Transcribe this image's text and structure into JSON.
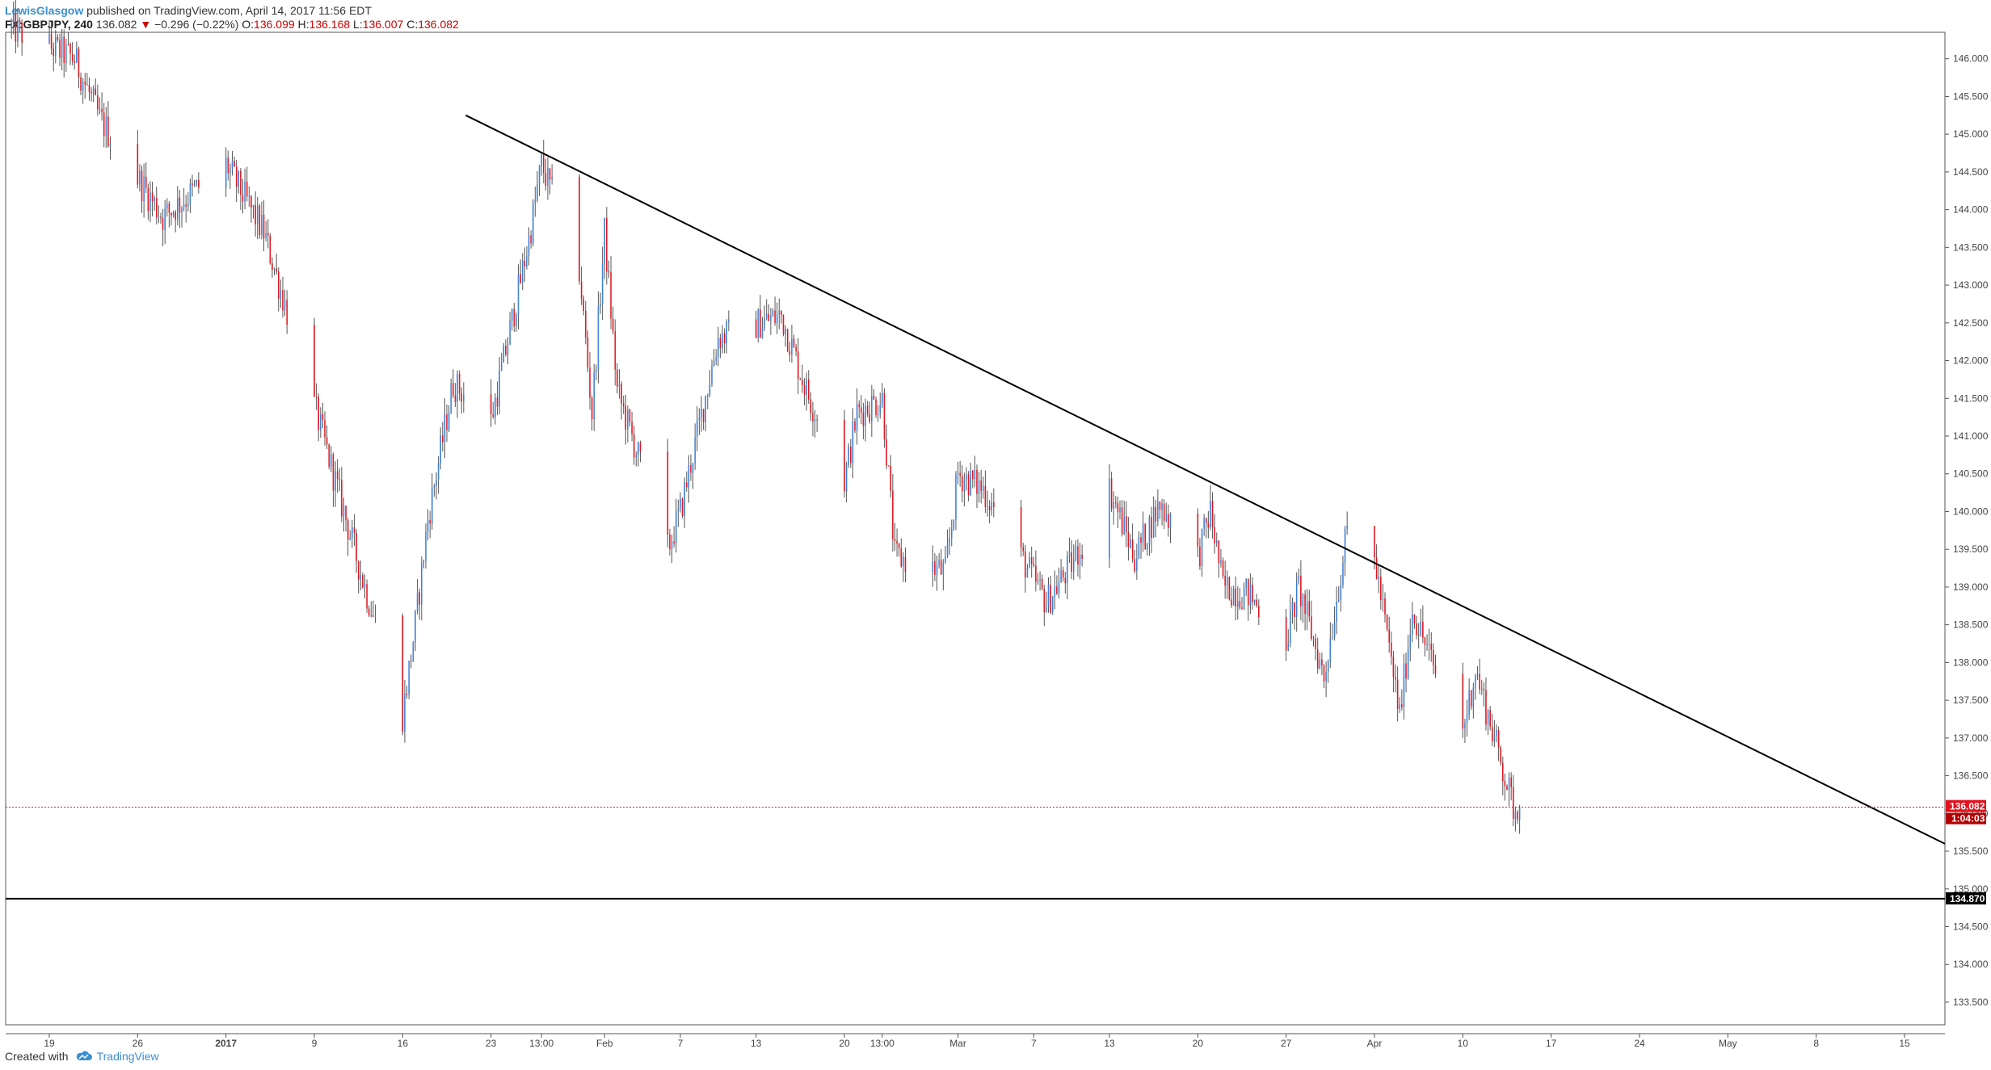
{
  "header": {
    "user": "LewisGlasgow",
    "published": "published on TradingView.com, April 14, 2017 11:56 EDT",
    "symbol": "FX:GBPJPY, 240",
    "last": "136.082",
    "change_arrow": "▼",
    "change": "−0.296 (−0.22%)",
    "o_label": "O:",
    "o": "136.099",
    "h_label": "H:",
    "h": "136.168",
    "l_label": "L:",
    "l": "136.007",
    "c_label": "C:",
    "c": "136.082"
  },
  "footer": {
    "created_with": "Created with",
    "brand": "TradingView",
    "logo_icon": "tradingview-cloud-icon"
  },
  "colors": {
    "up": "#3d7fd6",
    "down": "#e0141e",
    "trendline": "#000000",
    "support": "#000000",
    "price_line": "#e0141e",
    "grid": "#e8e8e8"
  },
  "chart_data": {
    "type": "candlestick",
    "timeframe": "240",
    "ylim": [
      133.2,
      146.35
    ],
    "y_ticks": [
      "133.500",
      "134.000",
      "134.500",
      "135.000",
      "135.500",
      "136.000",
      "136.500",
      "137.000",
      "137.500",
      "138.000",
      "138.500",
      "139.000",
      "139.500",
      "140.000",
      "140.500",
      "141.000",
      "141.500",
      "142.000",
      "142.500",
      "143.000",
      "143.500",
      "144.000",
      "144.500",
      "145.000",
      "145.500",
      "146.000"
    ],
    "x_ticks": [
      "19",
      "26",
      "2017",
      "9",
      "16",
      "23",
      "13:00",
      "Feb",
      "7",
      "13",
      "20",
      "13:00",
      "Mar",
      "7",
      "13",
      "20",
      "27",
      "Apr",
      "10",
      "17",
      "24",
      "May",
      "8",
      "15"
    ],
    "anchors": [
      {
        "t": "2016-12-16",
        "p": 146.4
      },
      {
        "t": "2016-12-21",
        "p": 146.0
      },
      {
        "t": "2016-12-23",
        "p": 145.2
      },
      {
        "t": "2016-12-28",
        "p": 143.9
      },
      {
        "t": "2017-01-02",
        "p": 144.6
      },
      {
        "t": "2017-01-05",
        "p": 143.7
      },
      {
        "t": "2017-01-09",
        "p": 141.4
      },
      {
        "t": "2017-01-13",
        "p": 139.0
      },
      {
        "t": "2017-01-16",
        "p": 137.3
      },
      {
        "t": "2017-01-17",
        "p": 138.5
      },
      {
        "t": "2017-01-18",
        "p": 139.9
      },
      {
        "t": "2017-01-20",
        "p": 141.7
      },
      {
        "t": "2017-01-23",
        "p": 141.2
      },
      {
        "t": "2017-01-26",
        "p": 143.6
      },
      {
        "t": "2017-01-27",
        "p": 144.6
      },
      {
        "t": "2017-01-30",
        "p": 143.2
      },
      {
        "t": "2017-01-31",
        "p": 141.3
      },
      {
        "t": "2017-02-01",
        "p": 143.7
      },
      {
        "t": "2017-02-02",
        "p": 141.6
      },
      {
        "t": "2017-02-06",
        "p": 139.5
      },
      {
        "t": "2017-02-07",
        "p": 140.0
      },
      {
        "t": "2017-02-10",
        "p": 142.3
      },
      {
        "t": "2017-02-15",
        "p": 142.6
      },
      {
        "t": "2017-02-17",
        "p": 141.6
      },
      {
        "t": "2017-02-20",
        "p": 140.4
      },
      {
        "t": "2017-02-21",
        "p": 141.3
      },
      {
        "t": "2017-02-23",
        "p": 141.5
      },
      {
        "t": "2017-02-24",
        "p": 139.4
      },
      {
        "t": "2017-02-28",
        "p": 139.2
      },
      {
        "t": "2017-03-01",
        "p": 140.5
      },
      {
        "t": "2017-03-03",
        "p": 140.3
      },
      {
        "t": "2017-03-06",
        "p": 139.4
      },
      {
        "t": "2017-03-08",
        "p": 138.8
      },
      {
        "t": "2017-03-10",
        "p": 139.3
      },
      {
        "t": "2017-03-13",
        "p": 140.3
      },
      {
        "t": "2017-03-15",
        "p": 139.4
      },
      {
        "t": "2017-03-17",
        "p": 140.1
      },
      {
        "t": "2017-03-20",
        "p": 139.4
      },
      {
        "t": "2017-03-21",
        "p": 140.0
      },
      {
        "t": "2017-03-22",
        "p": 139.0
      },
      {
        "t": "2017-03-24",
        "p": 138.9
      },
      {
        "t": "2017-03-27",
        "p": 138.3
      },
      {
        "t": "2017-03-28",
        "p": 139.0
      },
      {
        "t": "2017-03-30",
        "p": 137.8
      },
      {
        "t": "2017-04-01",
        "p": 139.9
      },
      {
        "t": "2017-04-03",
        "p": 139.4
      },
      {
        "t": "2017-04-05",
        "p": 137.3
      },
      {
        "t": "2017-04-06",
        "p": 138.7
      },
      {
        "t": "2017-04-08",
        "p": 137.8
      },
      {
        "t": "2017-04-10",
        "p": 137.1
      },
      {
        "t": "2017-04-11",
        "p": 137.9
      },
      {
        "t": "2017-04-13",
        "p": 136.7
      },
      {
        "t": "2017-04-14",
        "p": 136.08
      }
    ],
    "trendline": {
      "from": {
        "t": "2017-01-21",
        "p": 145.25
      },
      "to": {
        "t": "2017-05-20",
        "p": 135.45
      }
    },
    "support_level": 134.87,
    "support_label": "134.870",
    "last_price": 136.082,
    "last_price_label": "136.082",
    "countdown": "1:04:03"
  }
}
